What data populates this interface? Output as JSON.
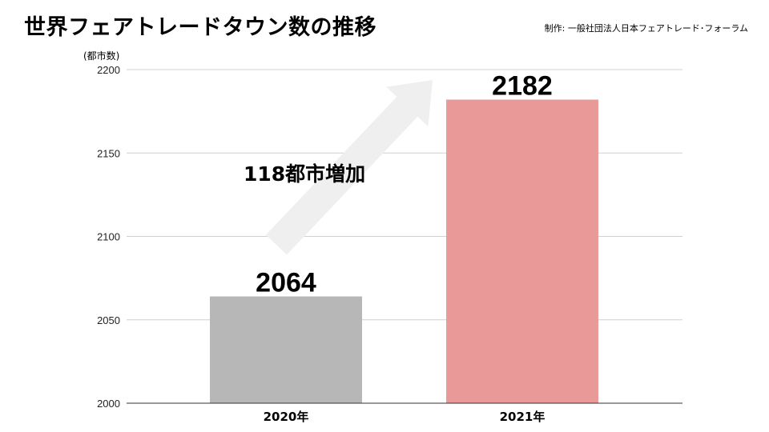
{
  "title": "世界フェアトレードタウン数の推移",
  "credit": "制作: 一般社団法人日本フェアトレード･フォーラム",
  "chart_data": {
    "type": "bar",
    "categories": [
      "2020年",
      "2021年"
    ],
    "values": [
      2064,
      2182
    ],
    "data_labels": [
      "2064",
      "2182"
    ],
    "ylabel": "(都市数)",
    "ylim": [
      2000,
      2200
    ],
    "yticks": [
      "2000",
      "2050",
      "2100",
      "2150",
      "2200"
    ],
    "grid": true,
    "bar_colors": [
      "#b7b7b7",
      "#ea9999"
    ],
    "annotation": "118都市増加",
    "arrow_color": "#efefef"
  }
}
